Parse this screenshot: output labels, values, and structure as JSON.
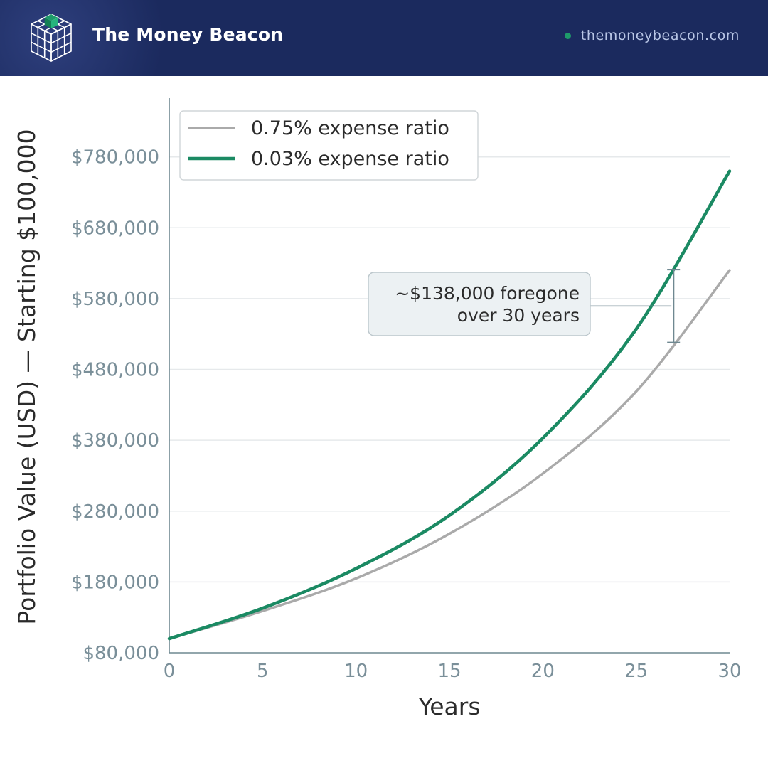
{
  "header": {
    "brand": "The Money Beacon",
    "site": "themoneybeacon.com",
    "bg_color": "#1b2a5e",
    "logo_icon": "cube-grid-icon"
  },
  "chart_data": {
    "type": "line",
    "xlabel": "Years",
    "ylabel": "Portfolio Value (USD) — Starting $100,000",
    "xlim": [
      0,
      30
    ],
    "ylim": [
      80000,
      860000
    ],
    "xticks": [
      0,
      5,
      10,
      15,
      20,
      25,
      30
    ],
    "xtick_labels": [
      "0",
      "5",
      "10",
      "15",
      "20",
      "25",
      "30"
    ],
    "yticks": [
      80000,
      180000,
      280000,
      380000,
      480000,
      580000,
      680000,
      780000
    ],
    "ytick_labels": [
      "$80,000",
      "$180,000",
      "$280,000",
      "$380,000",
      "$480,000",
      "$580,000",
      "$680,000",
      "$780,000"
    ],
    "grid": true,
    "legend_position": "top-left",
    "x": [
      0,
      5,
      10,
      15,
      20,
      25,
      30
    ],
    "series": [
      {
        "name": "0.75% expense ratio",
        "color": "#aaaaaa",
        "values": [
          100000,
          139000,
          185000,
          248000,
          333000,
          449000,
          620000
        ]
      },
      {
        "name": "0.03% expense ratio",
        "color": "#1b8a63",
        "values": [
          100000,
          143000,
          199000,
          274000,
          383000,
          537000,
          760000
        ]
      }
    ],
    "annotation": {
      "lines": [
        "~$138,000 foregone",
        "over 30 years"
      ],
      "x": 27,
      "y_low": 518000,
      "y_high": 621000
    }
  }
}
